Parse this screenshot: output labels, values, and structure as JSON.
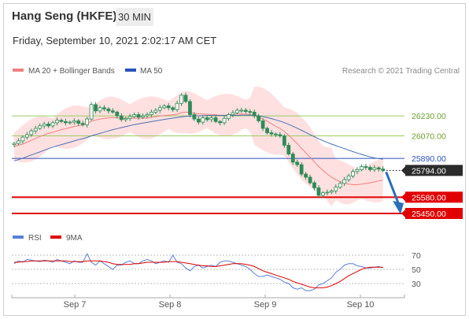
{
  "header": {
    "title": "Hang Seng (HKFE)",
    "timeframe": "30 MIN",
    "datetime": "Friday, September 10, 2021 2:02:17 AM CET"
  },
  "legend": {
    "bollinger": "MA 20 + Bollinger Bands",
    "ma50": "MA 50",
    "credit": "Research © 2021 Trading Central",
    "rsi": "RSI",
    "ma9": "9MA"
  },
  "colors": {
    "candle": "#2e8b57",
    "bollinger_band": "#ffdada",
    "ma20": "#f08080",
    "ma50": "#4a6fb5",
    "resistance": "#9acd63",
    "pivot": "#2a52be",
    "support": "#e00000",
    "arrow": "#2a6fb5",
    "rsi": "#5b7fd6",
    "rsi_ma": "#e00000"
  },
  "chart_data": [
    {
      "type": "candlestick",
      "title": "Hang Seng (HKFE) 30 MIN",
      "x_ticks": [
        "Sep 7",
        "Sep 8",
        "Sep 9",
        "Sep 10"
      ],
      "ylim": [
        25400,
        26460
      ],
      "levels": [
        {
          "label": "26230.00",
          "value": 26230,
          "kind": "resistance"
        },
        {
          "label": "26070.00",
          "value": 26070,
          "kind": "resistance"
        },
        {
          "label": "25890.00",
          "value": 25890,
          "kind": "pivot"
        },
        {
          "label": "25794.00",
          "value": 25794,
          "kind": "last"
        },
        {
          "label": "25580.00",
          "value": 25580,
          "kind": "support"
        },
        {
          "label": "25450.00",
          "value": 25450,
          "kind": "support"
        }
      ],
      "close": [
        26010,
        26030,
        26060,
        26080,
        26110,
        26130,
        26150,
        26165,
        26150,
        26175,
        26195,
        26185,
        26175,
        26180,
        26190,
        26170,
        26160,
        26205,
        26320,
        26270,
        26295,
        26285,
        26270,
        26260,
        26230,
        26200,
        26210,
        26225,
        26240,
        26220,
        26230,
        26240,
        26260,
        26275,
        26295,
        26310,
        26295,
        26280,
        26330,
        26395,
        26345,
        26240,
        26205,
        26180,
        26215,
        26200,
        26215,
        26185,
        26175,
        26210,
        26240,
        26255,
        26275,
        26275,
        26265,
        26260,
        26230,
        26190,
        26130,
        26095,
        26085,
        26080,
        26070,
        25995,
        25925,
        25860,
        25840,
        25765,
        25740,
        25695,
        25655,
        25595,
        25615,
        25620,
        25630,
        25660,
        25690,
        25720,
        25750,
        25785,
        25800,
        25825,
        25818,
        25800,
        25815,
        25805,
        25794
      ],
      "ma20": [
        25985,
        25995,
        26005,
        26020,
        26035,
        26050,
        26065,
        26078,
        26090,
        26100,
        26110,
        26120,
        26128,
        26136,
        26145,
        26152,
        26158,
        26168,
        26188,
        26197,
        26205,
        26210,
        26213,
        26215,
        26215,
        26213,
        26212,
        26212,
        26212,
        26211,
        26212,
        26214,
        26218,
        26223,
        26228,
        26233,
        26236,
        26238,
        26244,
        26256,
        26261,
        26256,
        26251,
        26246,
        26245,
        26243,
        26242,
        26239,
        26236,
        26235,
        26237,
        26240,
        26244,
        26245,
        26244,
        26241,
        26232,
        26220,
        26204,
        26186,
        26167,
        26147,
        26130,
        26105,
        26075,
        26042,
        26010,
        25970,
        25935,
        25900,
        25862,
        25825,
        25795,
        25765,
        25740,
        25720,
        25705,
        25692,
        25684,
        25680,
        25680,
        25684,
        25690,
        25695,
        25702,
        25710,
        25716
      ],
      "ma50": [
        25870,
        25880,
        25892,
        25905,
        25918,
        25930,
        25942,
        25955,
        25968,
        25980,
        25990,
        26000,
        26010,
        26020,
        26030,
        26040,
        26048,
        26058,
        26070,
        26080,
        26090,
        26100,
        26110,
        26120,
        26128,
        26136,
        26144,
        26152,
        26160,
        26166,
        26172,
        26178,
        26184,
        26190,
        26196,
        26202,
        26207,
        26212,
        26217,
        26222,
        26226,
        26228,
        26230,
        26231,
        26232,
        26233,
        26233,
        26233,
        26233,
        26233,
        26233,
        26233,
        26234,
        26235,
        26236,
        26236,
        26234,
        26230,
        26224,
        26216,
        26208,
        26198,
        26188,
        26176,
        26162,
        26147,
        26131,
        26114,
        26097,
        26080,
        26063,
        26047,
        26032,
        26018,
        26004,
        25992,
        25980,
        25968,
        25956,
        25944,
        25933,
        25922,
        25912,
        25902,
        25894,
        25888,
        25884
      ]
    },
    {
      "type": "line",
      "title": "RSI",
      "ylim": [
        10,
        80
      ],
      "y_ticks": [
        "70",
        "50",
        "30"
      ],
      "series": [
        {
          "name": "RSI",
          "values": [
            58,
            62,
            60,
            64,
            63,
            62,
            61,
            63,
            62,
            60,
            64,
            62,
            60,
            58,
            62,
            60,
            60,
            72,
            60,
            56,
            62,
            58,
            54,
            50,
            56,
            56,
            60,
            62,
            58,
            58,
            62,
            64,
            62,
            58,
            60,
            62,
            60,
            70,
            60,
            58,
            52,
            48,
            54,
            56,
            52,
            54,
            56,
            54,
            60,
            62,
            62,
            60,
            58,
            56,
            54,
            50,
            44,
            40,
            40,
            42,
            40,
            38,
            36,
            32,
            30,
            24,
            22,
            24,
            20,
            20,
            22,
            28,
            30,
            34,
            38,
            46,
            50,
            56,
            58,
            58,
            55,
            54,
            52,
            52,
            53,
            54,
            52
          ]
        },
        {
          "name": "9MA",
          "values": [
            60,
            60,
            61,
            61,
            62,
            62,
            62,
            62,
            62,
            62,
            62,
            62,
            62,
            61,
            61,
            61,
            61,
            62,
            62,
            62,
            62,
            61,
            60,
            58,
            57,
            57,
            57,
            57,
            58,
            58,
            59,
            60,
            60,
            60,
            60,
            60,
            61,
            61,
            61,
            60,
            59,
            58,
            57,
            56,
            55,
            55,
            54,
            54,
            55,
            56,
            57,
            58,
            58,
            58,
            57,
            56,
            54,
            51,
            48,
            46,
            44,
            42,
            40,
            38,
            36,
            33,
            31,
            29,
            27,
            25,
            24,
            24,
            24,
            25,
            27,
            30,
            33,
            37,
            41,
            44,
            47,
            50,
            52,
            53,
            53,
            53,
            53
          ]
        }
      ]
    }
  ]
}
